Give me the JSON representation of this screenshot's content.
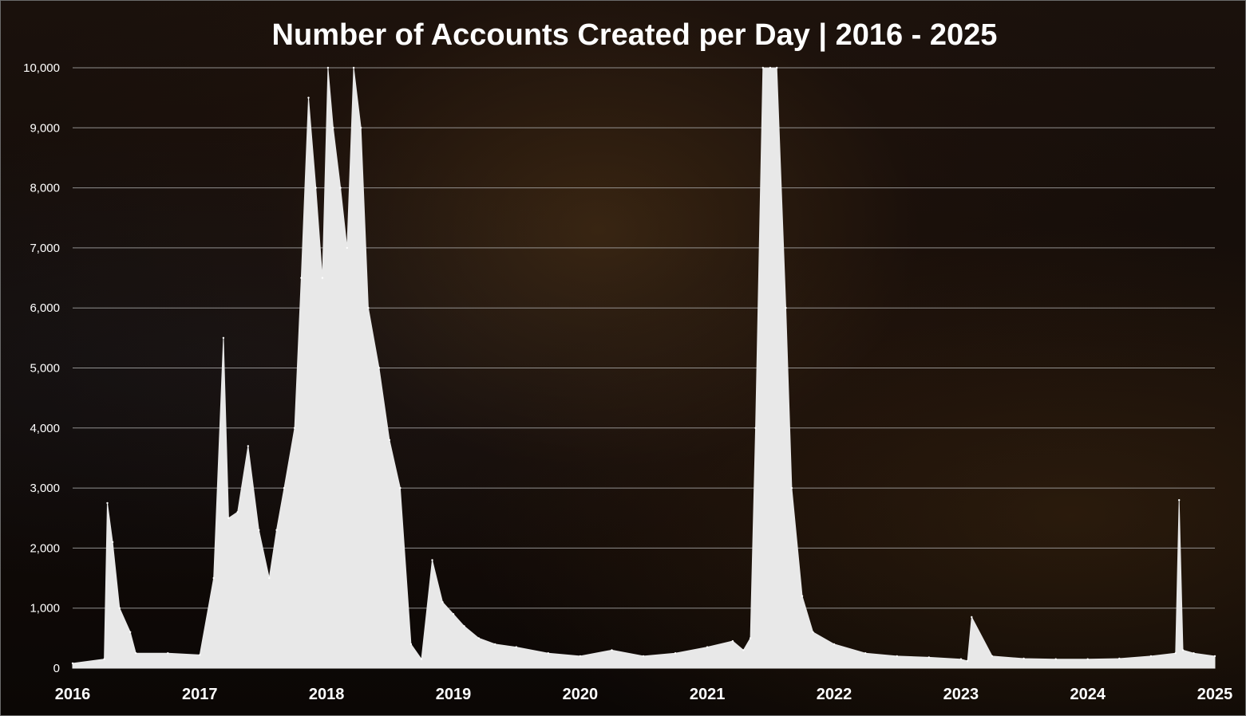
{
  "chart_data": {
    "type": "area",
    "title": "Number of Accounts Created per Day | 2016 - 2025",
    "xlabel": "",
    "ylabel": "",
    "ylim": [
      0,
      10000
    ],
    "xlim": [
      "2016-01-01",
      "2025-01-01"
    ],
    "y_ticks": [
      "0",
      "1,000",
      "2,000",
      "3,000",
      "4,000",
      "5,000",
      "6,000",
      "7,000",
      "8,000",
      "9,000",
      "10,000"
    ],
    "x_ticks": [
      "2016",
      "2017",
      "2018",
      "2019",
      "2020",
      "2021",
      "2022",
      "2023",
      "2024",
      "2025"
    ],
    "grid": true,
    "legend": "none",
    "colors": {
      "fill": "#e8e8e8",
      "grid": "#a6a6a6",
      "text": "#ffffff"
    },
    "series": [
      {
        "values_note": "approximate daily counts read from the chart (sampled key points)",
        "x": [
          "2016-01-01",
          "2016-04-01",
          "2016-04-10",
          "2016-04-25",
          "2016-05-15",
          "2016-06-15",
          "2016-07-01",
          "2016-10-01",
          "2017-01-01",
          "2017-02-10",
          "2017-03-10",
          "2017-03-25",
          "2017-04-20",
          "2017-05-20",
          "2017-06-20",
          "2017-07-20",
          "2017-08-10",
          "2017-09-01",
          "2017-10-01",
          "2017-10-20",
          "2017-11-10",
          "2017-12-01",
          "2017-12-20",
          "2018-01-05",
          "2018-01-20",
          "2018-02-10",
          "2018-03-01",
          "2018-03-20",
          "2018-04-10",
          "2018-05-01",
          "2018-06-01",
          "2018-07-01",
          "2018-08-01",
          "2018-09-01",
          "2018-10-01",
          "2018-11-01",
          "2018-12-01",
          "2019-01-01",
          "2019-02-01",
          "2019-03-15",
          "2019-05-01",
          "2019-07-01",
          "2019-10-01",
          "2020-01-01",
          "2020-04-01",
          "2020-07-01",
          "2020-10-01",
          "2021-01-01",
          "2021-03-15",
          "2021-04-15",
          "2021-05-05",
          "2021-05-20",
          "2021-06-10",
          "2021-07-01",
          "2021-07-20",
          "2021-08-15",
          "2021-09-01",
          "2021-10-01",
          "2021-11-01",
          "2022-01-01",
          "2022-04-01",
          "2022-07-01",
          "2022-10-01",
          "2023-01-01",
          "2023-01-20",
          "2023-02-01",
          "2023-04-01",
          "2023-07-01",
          "2023-10-01",
          "2024-01-01",
          "2024-04-01",
          "2024-07-01",
          "2024-09-10",
          "2024-09-20",
          "2024-10-01",
          "2024-11-01",
          "2025-01-01"
        ],
        "values": [
          80,
          150,
          2750,
          2100,
          1000,
          600,
          250,
          250,
          220,
          1500,
          5500,
          2500,
          2600,
          3700,
          2300,
          1500,
          2300,
          3000,
          4000,
          6500,
          9500,
          8000,
          6500,
          10000,
          9000,
          8000,
          7000,
          10000,
          9000,
          6000,
          5000,
          3800,
          3000,
          400,
          150,
          1800,
          1100,
          900,
          700,
          500,
          400,
          350,
          250,
          200,
          300,
          200,
          250,
          350,
          450,
          300,
          500,
          4000,
          10000,
          10000,
          10000,
          6000,
          3000,
          1200,
          600,
          400,
          250,
          200,
          180,
          150,
          120,
          850,
          200,
          160,
          150,
          150,
          160,
          200,
          250,
          2800,
          300,
          250,
          200
        ]
      }
    ]
  }
}
